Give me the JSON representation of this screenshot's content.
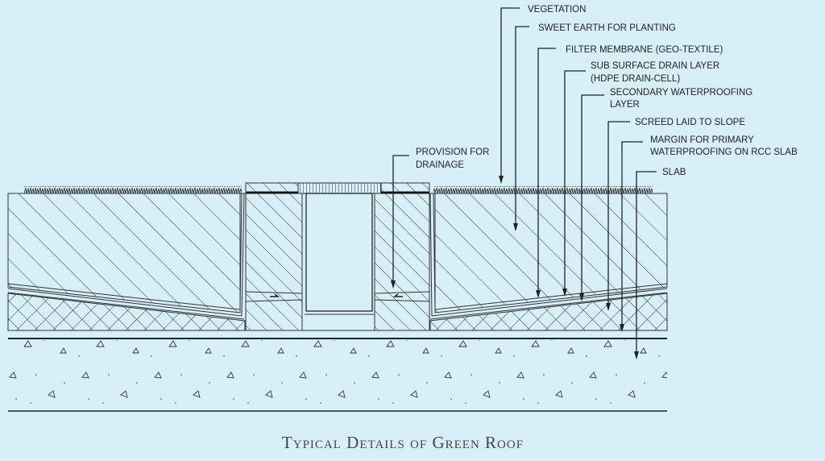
{
  "title": "Typical Details of Green Roof",
  "labels": {
    "vegetation": "VEGETATION",
    "sweet_earth": "SWEET EARTH FOR PLANTING",
    "filter": "FILTER MEMBRANE (GEO-TEXTILE)",
    "drain_1": "SUB SURFACE DRAIN LAYER",
    "drain_2": "(HDPE DRAIN-CELL)",
    "secondary_1": "SECONDARY WATERPROOFING",
    "secondary_2": "LAYER",
    "screed": "SCREED LAID TO SLOPE",
    "margin_1": "MARGIN FOR PRIMARY",
    "margin_2": "WATERPROOFING ON RCC SLAB",
    "slab": "SLAB",
    "provision_1": "PROVISION FOR",
    "provision_2": "DRAINAGE"
  },
  "colors": {
    "background": "#d7eff9",
    "line": "#2a2a2a"
  }
}
